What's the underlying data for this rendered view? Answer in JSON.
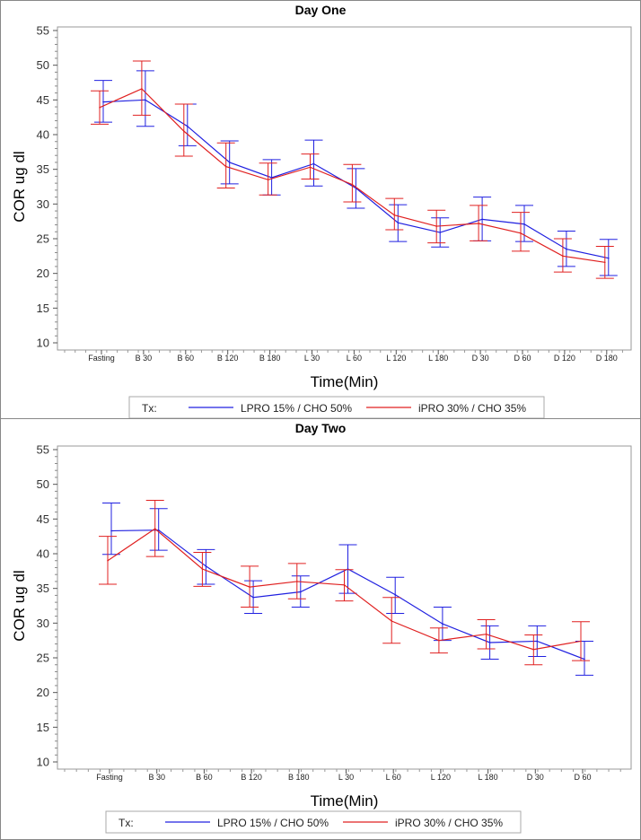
{
  "chart_data": [
    {
      "type": "line",
      "title": "Day One",
      "xlabel": "Time(Min)",
      "ylabel": "COR ug dl",
      "ylim": [
        10,
        55
      ],
      "yticks": [
        10,
        15,
        20,
        25,
        30,
        35,
        40,
        45,
        50,
        55
      ],
      "categories": [
        "Fasting",
        "B 30",
        "B 60",
        "B 120",
        "B 180",
        "L 30",
        "L 60",
        "L 120",
        "L 180",
        "D 30",
        "D 60",
        "D 120",
        "D 180"
      ],
      "legend_title": "Tx:",
      "series": [
        {
          "name": "LPRO 15% / CHO 50%",
          "color": "#2020e0",
          "values": [
            44.7,
            45.0,
            41.2,
            36.0,
            33.8,
            35.8,
            32.3,
            27.3,
            25.9,
            27.8,
            27.1,
            23.5,
            22.2
          ],
          "upper": [
            47.8,
            49.2,
            44.4,
            39.1,
            36.4,
            39.2,
            35.1,
            29.9,
            28.0,
            31.0,
            29.8,
            26.1,
            24.9
          ],
          "lower": [
            41.8,
            41.2,
            38.4,
            32.9,
            31.3,
            32.6,
            29.4,
            24.6,
            23.8,
            24.7,
            24.6,
            21.0,
            19.7
          ]
        },
        {
          "name": "iPRO 30% / CHO 35%",
          "color": "#e02020",
          "values": [
            43.9,
            46.6,
            40.5,
            35.4,
            33.5,
            35.3,
            32.8,
            28.4,
            26.8,
            27.2,
            25.8,
            22.5,
            21.6
          ],
          "upper": [
            46.3,
            50.6,
            44.4,
            38.8,
            35.9,
            37.2,
            35.7,
            30.8,
            29.1,
            29.8,
            28.8,
            25.0,
            23.9
          ],
          "lower": [
            41.5,
            42.8,
            36.9,
            32.3,
            31.3,
            33.6,
            30.3,
            26.3,
            24.4,
            24.7,
            23.2,
            20.2,
            19.3
          ]
        }
      ]
    },
    {
      "type": "line",
      "title": "Day Two",
      "xlabel": "Time(Min)",
      "ylabel": "COR ug dl",
      "ylim": [
        10,
        55
      ],
      "yticks": [
        10,
        15,
        20,
        25,
        30,
        35,
        40,
        45,
        50,
        55
      ],
      "categories": [
        "Fasting",
        "B 30",
        "B 60",
        "B 120",
        "B 180",
        "L 30",
        "L 60",
        "L 120",
        "L 180",
        "D 30",
        "D 60"
      ],
      "legend_title": "Tx:",
      "series": [
        {
          "name": "LPRO 15% / CHO 50%",
          "color": "#2020e0",
          "values": [
            43.3,
            43.4,
            38.2,
            33.7,
            34.5,
            37.8,
            34.1,
            29.9,
            27.2,
            27.4,
            24.8
          ],
          "upper": [
            47.3,
            46.5,
            40.6,
            36.1,
            36.8,
            41.3,
            36.6,
            32.3,
            29.6,
            29.6,
            27.4
          ],
          "lower": [
            39.9,
            40.5,
            35.6,
            31.4,
            32.3,
            34.3,
            31.4,
            27.5,
            24.8,
            25.2,
            22.5
          ]
        },
        {
          "name": "iPRO 30% / CHO 35%",
          "color": "#e02020",
          "values": [
            39.0,
            43.6,
            37.8,
            35.2,
            36.0,
            35.5,
            30.3,
            27.5,
            28.4,
            26.2,
            27.4
          ],
          "upper": [
            42.5,
            47.7,
            40.2,
            38.2,
            38.6,
            37.7,
            33.7,
            29.3,
            30.5,
            28.3,
            30.2
          ],
          "lower": [
            35.6,
            39.6,
            35.3,
            32.3,
            33.5,
            33.2,
            27.1,
            25.7,
            26.3,
            24.0,
            24.6
          ]
        }
      ]
    }
  ]
}
